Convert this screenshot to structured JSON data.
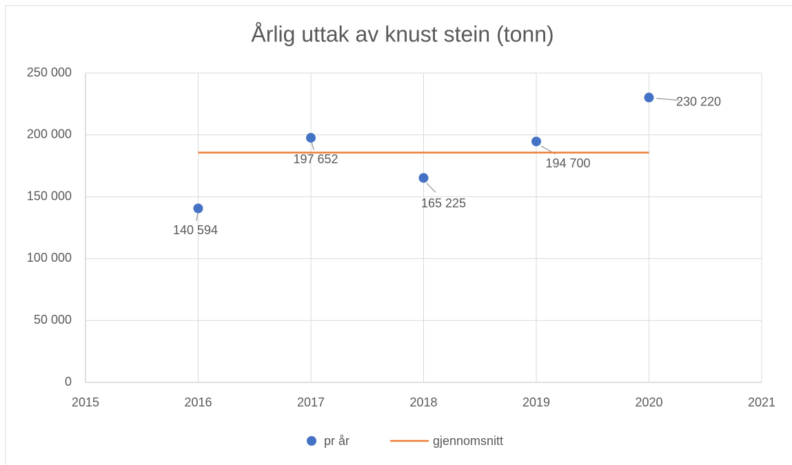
{
  "chart_data": {
    "type": "scatter",
    "title": "Årlig uttak av knust stein (tonn)",
    "xlim": [
      2015,
      2021
    ],
    "xticks": [
      2015,
      2016,
      2017,
      2018,
      2019,
      2020,
      2021
    ],
    "ylim": [
      0,
      250000
    ],
    "yticks": [
      0,
      {
        "value": 50000,
        "label": "50 000"
      },
      {
        "value": 100000,
        "label": "100 000"
      },
      {
        "value": 150000,
        "label": "150 000"
      },
      {
        "value": 200000,
        "label": "200 000"
      },
      {
        "value": 250000,
        "label": "250 000"
      }
    ],
    "grid": true,
    "legend": "bottom",
    "series": [
      {
        "name": "pr år",
        "type": "scatter",
        "color": "#4472c4",
        "x": [
          2016,
          2017,
          2018,
          2019,
          2020
        ],
        "values": [
          140594,
          197652,
          165225,
          194700,
          230220
        ],
        "value_labels": [
          "140 594",
          "197 652",
          "165 225",
          "194 700",
          "230 220"
        ]
      },
      {
        "name": "gjennomsnitt",
        "type": "line",
        "color": "#ed7d31",
        "x": [
          2016,
          2020
        ],
        "values": [
          185678.2,
          185678.2
        ]
      }
    ]
  }
}
